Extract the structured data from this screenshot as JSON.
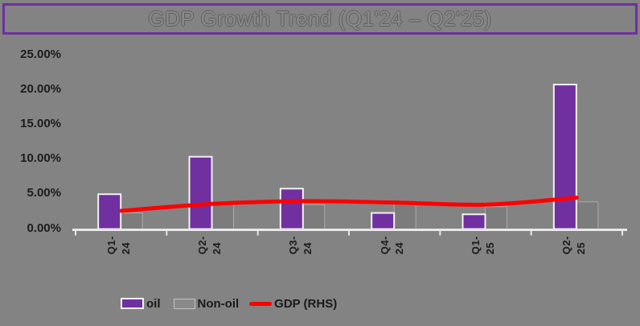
{
  "banner": {
    "title": "GDP Growth Trend (Q1'24 – Q2'25)"
  },
  "legend": {
    "oil_label": "oil",
    "non_oil_label": "Non-oil",
    "gdp_label": "GDP (RHS)"
  },
  "colors": {
    "background": "#838383",
    "banner_border": "#7030A0",
    "oil_bar": "#7030A0",
    "oil_bar_border": "#F2F2F2",
    "non_oil_bar": "#7C7C7C",
    "non_oil_bar_border": "#ABABAB",
    "gdp_line": "#FF0000",
    "axis": "#E8E8E8",
    "label_text": "#1C1C1C"
  },
  "chart_data": {
    "type": "bar",
    "title": "GDP Growth Trend (Q1'24 – Q2'25)",
    "categories": [
      "Q1-24",
      "Q2-24",
      "Q3-24",
      "Q4-24",
      "Q1-25",
      "Q2-25"
    ],
    "series": [
      {
        "name": "oil",
        "type": "bar",
        "color": "#7030A0",
        "values": [
          4.9,
          10.3,
          5.7,
          2.2,
          2.0,
          20.7
        ]
      },
      {
        "name": "Non-oil",
        "type": "bar",
        "color": "#7C7C7C",
        "values": [
          2.2,
          3.5,
          3.4,
          3.5,
          3.1,
          3.8
        ]
      },
      {
        "name": "GDP (RHS)",
        "type": "line",
        "color": "#FF0000",
        "values": [
          2.5,
          3.5,
          3.9,
          3.7,
          3.4,
          4.4
        ]
      }
    ],
    "unit": "%",
    "xlabel": "",
    "ylabel": "",
    "ylim": [
      0,
      25
    ],
    "y_ticks": [
      "25.00%",
      "20.00%",
      "15.00%",
      "10.00%",
      "5.00%",
      "0.00%"
    ],
    "y_tick_values": [
      25,
      20,
      15,
      10,
      5,
      0
    ],
    "grid": false,
    "legend_position": "bottom",
    "right_axis_visible": false
  }
}
